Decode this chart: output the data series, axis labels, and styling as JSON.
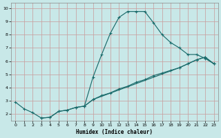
{
  "xlabel": "Humidex (Indice chaleur)",
  "bg_color": "#c8e8e8",
  "grid_color": "#c8a0a0",
  "line_color": "#1a6b6b",
  "xlim_min": -0.5,
  "xlim_max": 23.5,
  "ylim_min": 1.5,
  "ylim_max": 10.4,
  "xticks": [
    0,
    1,
    2,
    3,
    4,
    5,
    6,
    7,
    8,
    9,
    10,
    11,
    12,
    13,
    14,
    15,
    16,
    17,
    18,
    19,
    20,
    21,
    22,
    23
  ],
  "yticks": [
    2,
    3,
    4,
    5,
    6,
    7,
    8,
    9,
    10
  ],
  "line1_x": [
    0,
    1,
    2,
    3,
    4,
    5,
    6,
    7,
    8,
    9,
    10,
    11,
    12,
    13,
    14,
    15,
    16,
    17,
    18,
    19,
    20,
    21,
    22,
    23
  ],
  "line1_y": [
    2.9,
    2.4,
    2.1,
    1.7,
    1.75,
    2.2,
    2.3,
    2.5,
    2.6,
    4.8,
    6.5,
    8.1,
    9.3,
    9.75,
    9.75,
    9.75,
    8.9,
    8.0,
    7.4,
    7.0,
    6.5,
    6.5,
    6.2,
    5.8
  ],
  "line2_x": [
    3,
    4,
    5,
    6,
    7,
    8,
    9,
    19,
    20,
    21,
    22,
    23
  ],
  "line2_y": [
    1.7,
    1.75,
    2.2,
    2.3,
    2.5,
    2.6,
    3.1,
    5.5,
    5.8,
    6.1,
    6.3,
    5.8
  ],
  "line3_x": [
    8,
    9,
    10,
    11,
    12,
    13,
    14,
    15,
    16,
    17,
    18,
    19,
    20,
    21,
    22,
    23
  ],
  "line3_y": [
    2.6,
    3.1,
    3.4,
    3.6,
    3.9,
    4.1,
    4.4,
    4.6,
    4.9,
    5.1,
    5.3,
    5.5,
    5.8,
    6.1,
    6.3,
    5.8
  ]
}
